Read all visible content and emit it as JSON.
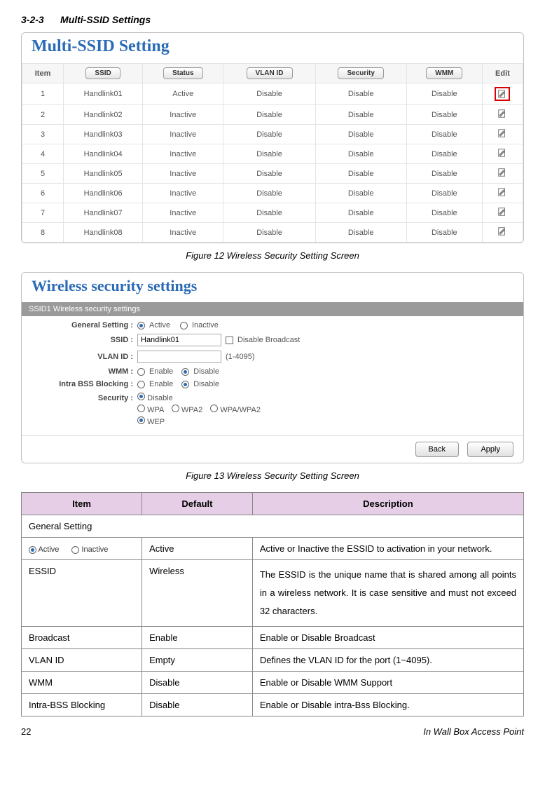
{
  "section_number": "3-2-3",
  "section_title": "Multi-SSID Settings",
  "panel1": {
    "title": "Multi-SSID Setting",
    "headers": {
      "item": "Item",
      "ssid": "SSID",
      "status": "Status",
      "vlan": "VLAN ID",
      "security": "Security",
      "wmm": "WMM",
      "edit": "Edit"
    },
    "rows": [
      {
        "n": "1",
        "ssid": "Handlink01",
        "status": "Active",
        "vlan": "Disable",
        "sec": "Disable",
        "wmm": "Disable",
        "hl": true
      },
      {
        "n": "2",
        "ssid": "Handlink02",
        "status": "Inactive",
        "vlan": "Disable",
        "sec": "Disable",
        "wmm": "Disable",
        "hl": false
      },
      {
        "n": "3",
        "ssid": "Handlink03",
        "status": "Inactive",
        "vlan": "Disable",
        "sec": "Disable",
        "wmm": "Disable",
        "hl": false
      },
      {
        "n": "4",
        "ssid": "Handlink04",
        "status": "Inactive",
        "vlan": "Disable",
        "sec": "Disable",
        "wmm": "Disable",
        "hl": false
      },
      {
        "n": "5",
        "ssid": "Handlink05",
        "status": "Inactive",
        "vlan": "Disable",
        "sec": "Disable",
        "wmm": "Disable",
        "hl": false
      },
      {
        "n": "6",
        "ssid": "Handlink06",
        "status": "Inactive",
        "vlan": "Disable",
        "sec": "Disable",
        "wmm": "Disable",
        "hl": false
      },
      {
        "n": "7",
        "ssid": "Handlink07",
        "status": "Inactive",
        "vlan": "Disable",
        "sec": "Disable",
        "wmm": "Disable",
        "hl": false
      },
      {
        "n": "8",
        "ssid": "Handlink08",
        "status": "Inactive",
        "vlan": "Disable",
        "sec": "Disable",
        "wmm": "Disable",
        "hl": false
      }
    ]
  },
  "caption1": "Figure 12 Wireless Security Setting Screen",
  "panel2": {
    "title": "Wireless security settings",
    "bar": "SSID1 Wireless security settings",
    "labels": {
      "general": "General Setting :",
      "ssid": "SSID :",
      "vlan": "VLAN ID :",
      "wmm": "WMM :",
      "intra": "Intra BSS Blocking :",
      "security": "Security :"
    },
    "options": {
      "active": "Active",
      "inactive": "Inactive",
      "disable_broadcast": "Disable Broadcast",
      "vlan_hint": "(1-4095)",
      "enable": "Enable",
      "disable": "Disable",
      "sec_disable": "Disable",
      "wpa": "WPA",
      "wpa2": "WPA2",
      "wpawpa2": "WPA/WPA2",
      "wep": "WEP"
    },
    "ssid_value": "Handlink01",
    "buttons": {
      "back": "Back",
      "apply": "Apply"
    }
  },
  "caption2": "Figure 13 Wireless Security Setting Screen",
  "desc": {
    "headers": {
      "item": "Item",
      "default": "Default",
      "desc": "Description"
    },
    "general_row": "General Setting",
    "radio_active": "Active",
    "radio_inactive": "Inactive",
    "rows": [
      {
        "item": "__radio__",
        "def": "Active",
        "desc": "Active or Inactive the ESSID to activation in your network."
      },
      {
        "item": "ESSID",
        "def": "Wireless",
        "desc": "The ESSID is the unique name that is shared among all points in a wireless network. It is case sensitive and must not exceed 32 characters.",
        "long": true
      },
      {
        "item": "Broadcast",
        "def": "Enable",
        "desc": "Enable or Disable Broadcast"
      },
      {
        "item": "VLAN ID",
        "def": "Empty",
        "desc": "Defines the VLAN ID for the port (1~4095)."
      },
      {
        "item": "WMM",
        "def": "Disable",
        "desc": "Enable or Disable WMM Support"
      },
      {
        "item": "Intra-BSS Blocking",
        "def": "Disable",
        "desc": "Enable or Disable intra-Bss Blocking."
      }
    ]
  },
  "footer": {
    "page": "22",
    "title": "In Wall Box Access Point"
  }
}
